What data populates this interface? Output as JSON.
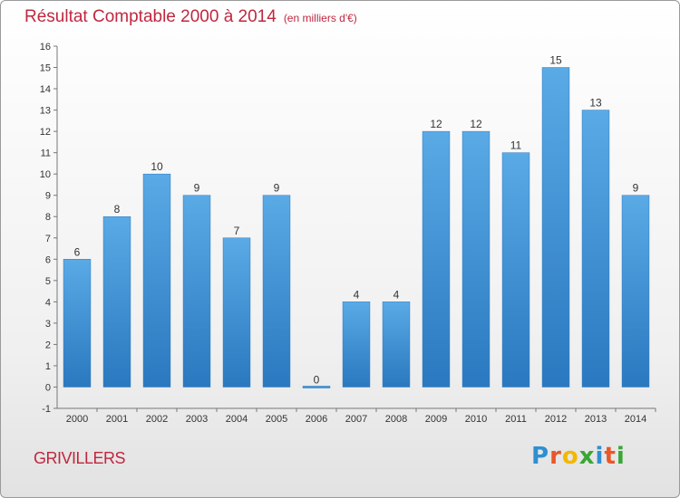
{
  "title": "Résultat Comptable 2000 à 2014",
  "unit": "(en milliers d'€)",
  "commune": "GRIVILLERS",
  "logo": {
    "letters": [
      "P",
      "r",
      "o",
      "x",
      "i",
      "t",
      "i"
    ],
    "colors": [
      "#2f8fd1",
      "#e8572a",
      "#f2b800",
      "#3aa635",
      "#2f8fd1",
      "#e8572a",
      "#3aa635"
    ]
  },
  "chart_data": {
    "type": "bar",
    "categories": [
      "2000",
      "2001",
      "2002",
      "2003",
      "2004",
      "2005",
      "2006",
      "2007",
      "2008",
      "2009",
      "2010",
      "2011",
      "2012",
      "2013",
      "2014"
    ],
    "values": [
      6,
      8,
      10,
      9,
      7,
      9,
      0,
      4,
      4,
      12,
      12,
      11,
      15,
      13,
      9
    ],
    "ylim": [
      -1,
      16
    ],
    "yticks": [
      -1,
      0,
      1,
      2,
      3,
      4,
      5,
      6,
      7,
      8,
      9,
      10,
      11,
      12,
      13,
      14,
      15,
      16
    ],
    "bar_color": "#3a8fd8",
    "grid": false,
    "data_labels": true
  }
}
